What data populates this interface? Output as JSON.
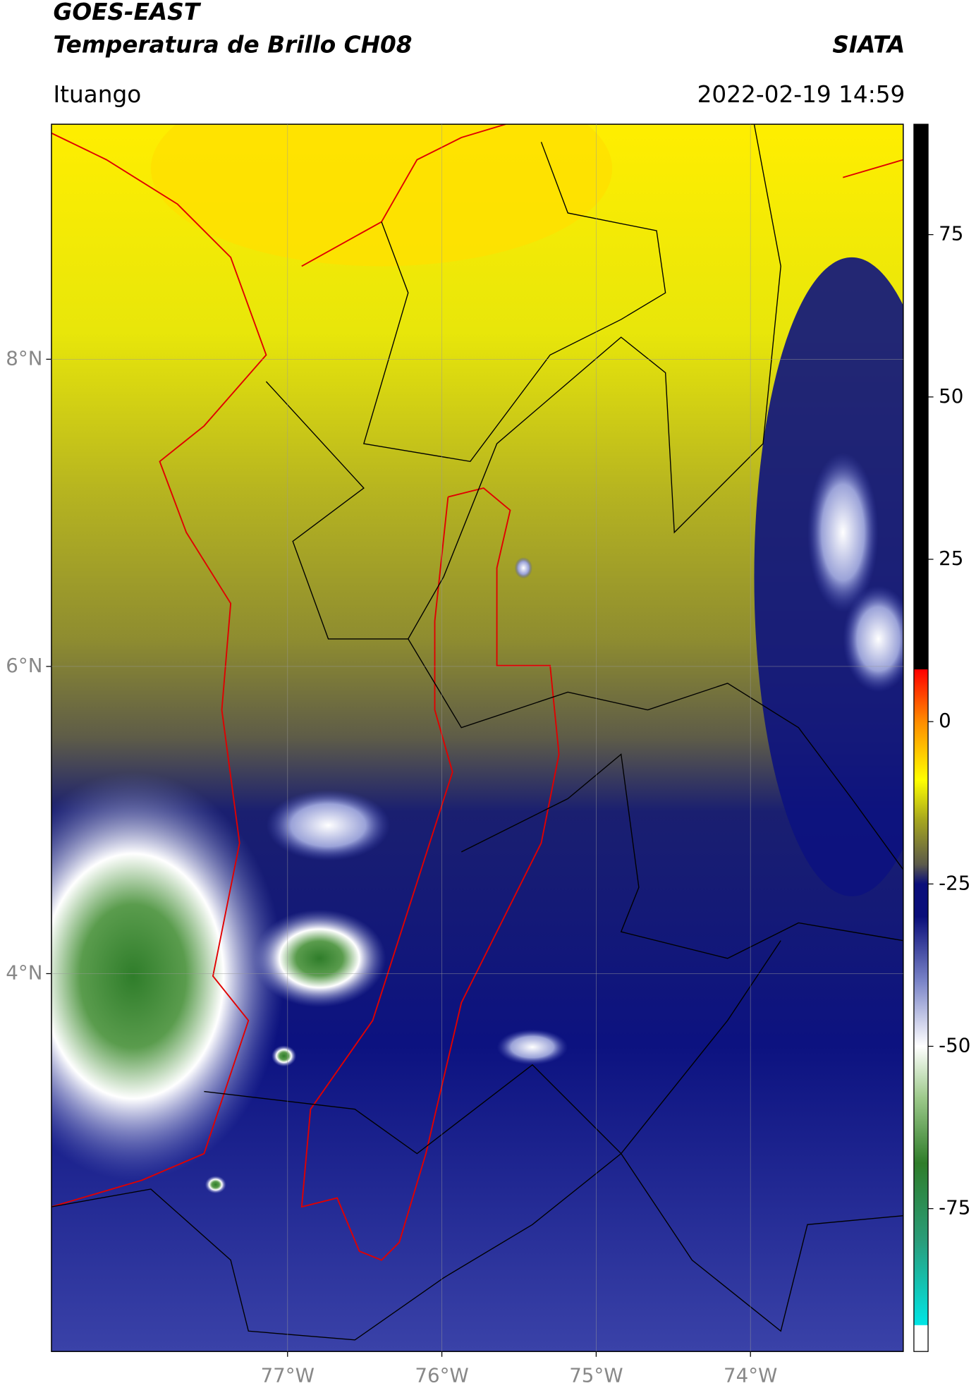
{
  "header": {
    "title": "GOES-EAST",
    "subtitle": "Temperatura de Brillo CH08",
    "brand": "SIATA",
    "location": "Ituango",
    "datetime": "2022-02-19 14:59"
  },
  "map": {
    "xlim": [
      -78.53,
      -73.01
    ],
    "ylim": [
      1.54,
      9.53
    ],
    "xticks": [
      {
        "value": -77,
        "label": "77°W"
      },
      {
        "value": -76,
        "label": "76°W"
      },
      {
        "value": -75,
        "label": "75°W"
      },
      {
        "value": -74,
        "label": "74°W"
      }
    ],
    "yticks": [
      {
        "value": 4,
        "label": "4°N"
      },
      {
        "value": 6,
        "label": "6°N"
      },
      {
        "value": 8,
        "label": "8°N"
      }
    ],
    "grid": true
  },
  "colorbar": {
    "lim": [
      -97,
      92
    ],
    "ticks": [
      -75,
      -50,
      -25,
      0,
      25,
      50,
      75
    ],
    "stops": [
      {
        "value": -97,
        "color": "#ffffff"
      },
      {
        "value": -93,
        "color": "#ffffff"
      },
      {
        "value": -92.9,
        "color": "#00e5e5"
      },
      {
        "value": -80,
        "color": "#2a9d7a"
      },
      {
        "value": -68,
        "color": "#2f7d2a"
      },
      {
        "value": -58,
        "color": "#9cc98a"
      },
      {
        "value": -50,
        "color": "#ffffff"
      },
      {
        "value": -40,
        "color": "#7a84c8"
      },
      {
        "value": -30,
        "color": "#0a0e7a"
      },
      {
        "value": -25,
        "color": "#0a0e7a"
      },
      {
        "value": -22,
        "color": "#5c5a4a"
      },
      {
        "value": -15,
        "color": "#a8a81e"
      },
      {
        "value": -9,
        "color": "#ffff00"
      },
      {
        "value": 0,
        "color": "#ff8c00"
      },
      {
        "value": 8,
        "color": "#ff0000"
      },
      {
        "value": 8.1,
        "color": "#000000"
      },
      {
        "value": 92,
        "color": "#000000"
      }
    ]
  }
}
